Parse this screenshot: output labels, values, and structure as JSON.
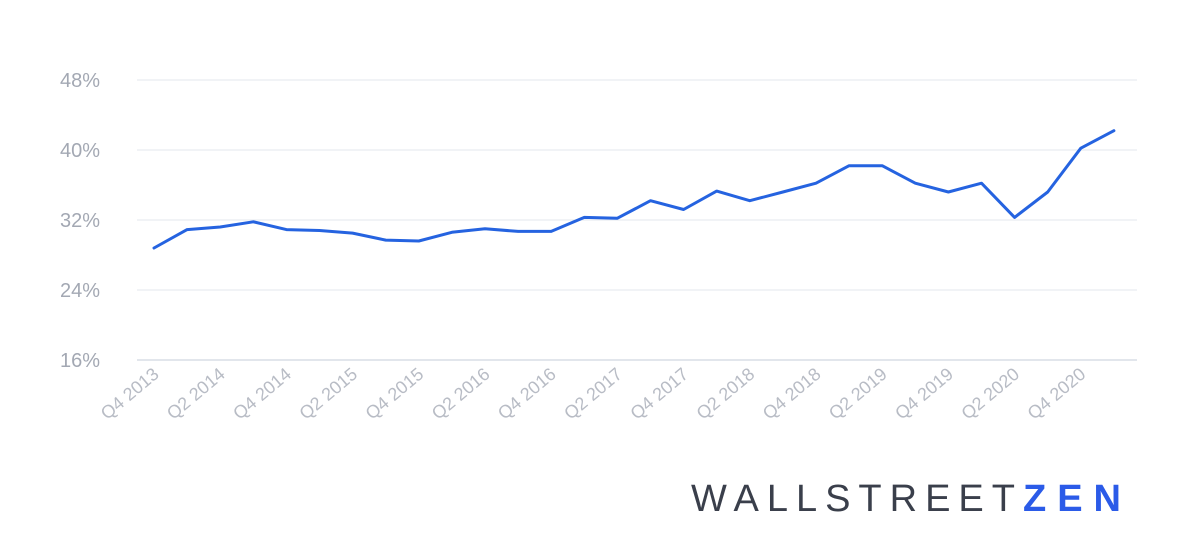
{
  "chart_data": {
    "type": "line",
    "title": "",
    "xlabel": "",
    "ylabel": "",
    "x_tick_labels": [
      "Q4 2013",
      "Q2 2014",
      "Q4 2014",
      "Q2 2015",
      "Q4 2015",
      "Q2 2016",
      "Q4 2016",
      "Q2 2017",
      "Q4 2017",
      "Q2 2018",
      "Q4 2018",
      "Q2 2019",
      "Q4 2019",
      "Q2 2020",
      "Q4 2020"
    ],
    "y_ticks": [
      16,
      24,
      32,
      40,
      48
    ],
    "y_tick_labels": [
      "16%",
      "24%",
      "32%",
      "40%",
      "48%"
    ],
    "ylim": [
      16,
      48
    ],
    "grid": true,
    "legend": "none",
    "series": [
      {
        "color": "#2563e0",
        "x": [
          "Q4 2013",
          "Q1 2014",
          "Q2 2014",
          "Q3 2014",
          "Q4 2014",
          "Q1 2015",
          "Q2 2015",
          "Q3 2015",
          "Q4 2015",
          "Q1 2016",
          "Q2 2016",
          "Q3 2016",
          "Q4 2016",
          "Q1 2017",
          "Q2 2017",
          "Q3 2017",
          "Q4 2017",
          "Q1 2018",
          "Q2 2018",
          "Q3 2018",
          "Q4 2018",
          "Q1 2019",
          "Q2 2019",
          "Q3 2019",
          "Q4 2019",
          "Q1 2020",
          "Q2 2020",
          "Q3 2020",
          "Q4 2020",
          "Q1 2021"
        ],
        "values": [
          28.8,
          30.9,
          31.2,
          31.8,
          30.9,
          30.8,
          30.5,
          29.7,
          29.6,
          30.6,
          31.0,
          30.7,
          30.7,
          32.3,
          32.2,
          34.2,
          33.2,
          35.3,
          34.2,
          35.2,
          36.2,
          38.2,
          38.2,
          36.2,
          35.2,
          36.2,
          32.3,
          35.2,
          40.2,
          42.2
        ]
      }
    ]
  },
  "brand": {
    "light": "WALLSTREET",
    "bold": "ZEN"
  }
}
